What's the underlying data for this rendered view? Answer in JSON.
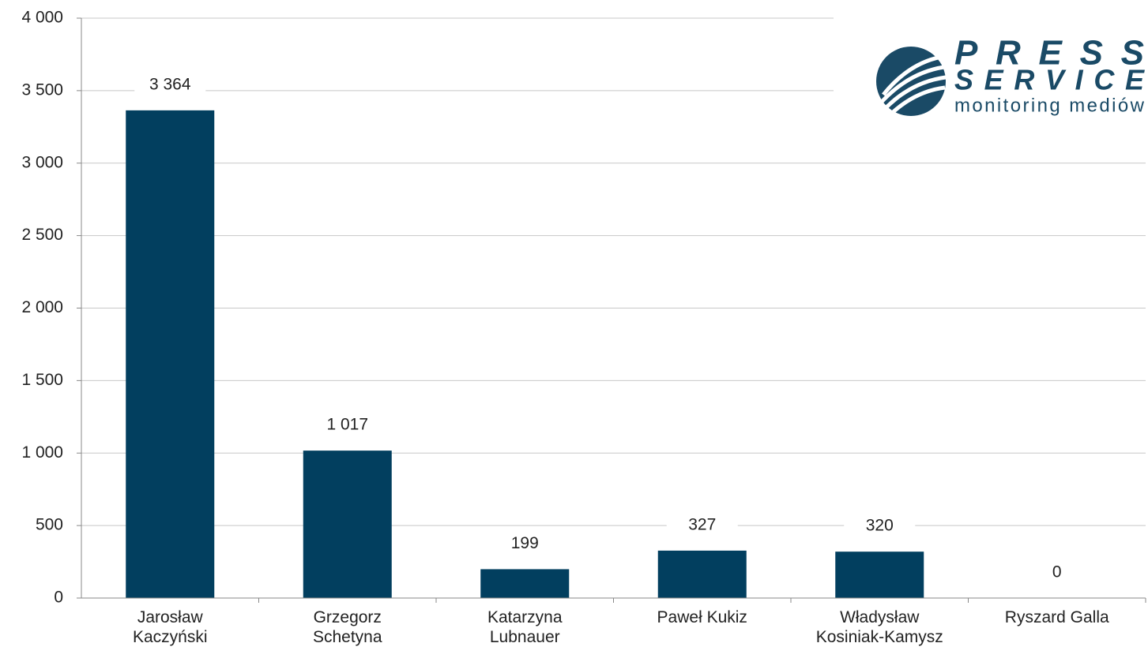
{
  "chart_data": {
    "type": "bar",
    "categories": [
      "Jarosław\nKaczyński",
      "Grzegorz\nSchetyna",
      "Katarzyna\nLubnauer",
      "Paweł Kukiz",
      "Władysław\nKosiniak-Kamysz",
      "Ryszard Galla"
    ],
    "values": [
      3364,
      1017,
      199,
      327,
      320,
      0
    ],
    "value_labels": [
      "3 364",
      "1 017",
      "199",
      "327",
      "320",
      "0"
    ],
    "color": "#023f5f",
    "ylim": [
      0,
      4000
    ],
    "yticks": [
      0,
      500,
      {
        "value": 1000,
        "label": "1 000"
      },
      {
        "value": 1500,
        "label": "1 500"
      },
      {
        "value": 2000,
        "label": "2 000"
      },
      {
        "value": 2500,
        "label": "2 500"
      },
      {
        "value": 3000,
        "label": "3 000"
      },
      {
        "value": 3500,
        "label": "3 500"
      },
      {
        "value": 4000,
        "label": "4 000"
      }
    ],
    "grid": true
  },
  "logo": {
    "line1": "PRESS",
    "line2": "SERVICE",
    "tagline": "monitoring mediów"
  }
}
